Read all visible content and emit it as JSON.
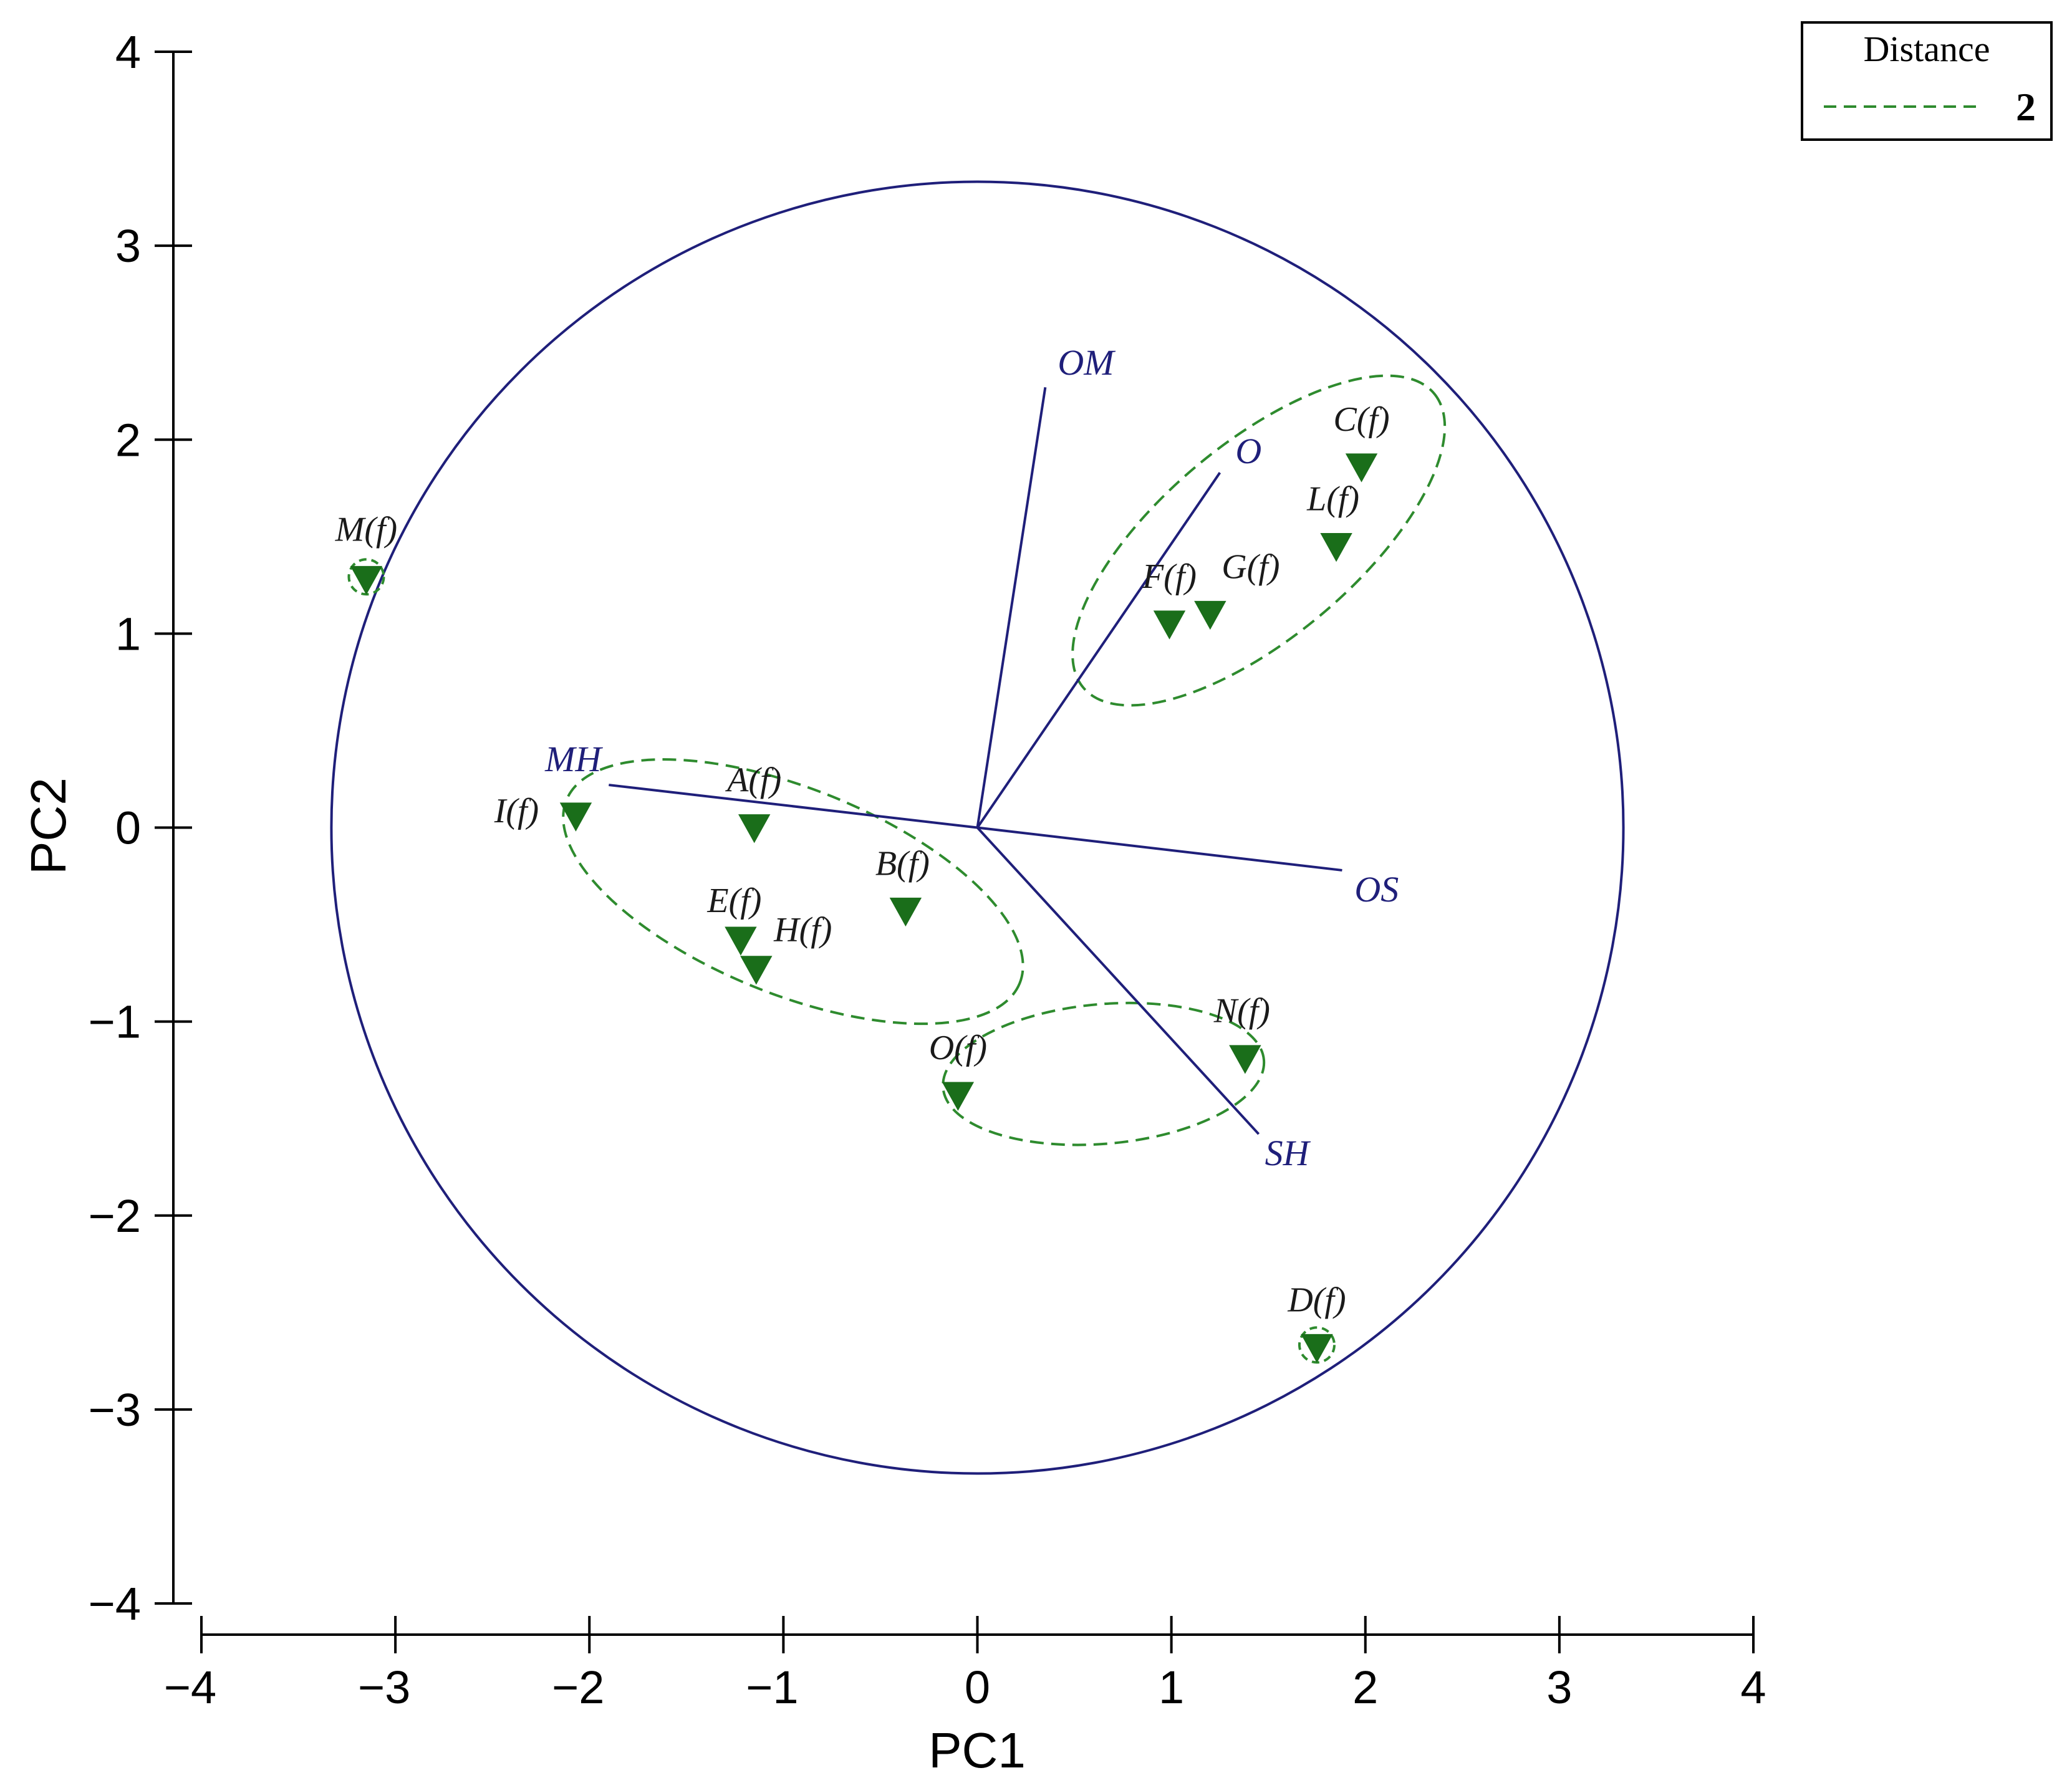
{
  "chart_data": {
    "type": "scatter",
    "title": "",
    "xlabel": "PC1",
    "ylabel": "PC2",
    "xlim": [
      -4,
      4
    ],
    "ylim": [
      -4,
      4
    ],
    "x_ticks": [
      -4,
      -3,
      -2,
      -1,
      0,
      1,
      2,
      3,
      4
    ],
    "y_ticks": [
      -4,
      -3,
      -2,
      -1,
      0,
      1,
      2,
      3,
      4
    ],
    "x_tick_labels": [
      "−4",
      "−3",
      "−2",
      "−1",
      "0",
      "1",
      "2",
      "3",
      "4"
    ],
    "y_tick_labels": [
      "−4",
      "−3",
      "−2",
      "−1",
      "0",
      "1",
      "2",
      "3",
      "4"
    ],
    "grid": false,
    "legend": {
      "title": "Distance",
      "entries": [
        {
          "label": "2",
          "style": "dashed",
          "color": "#2e8b2e"
        }
      ],
      "placement": "top-right"
    },
    "circle": {
      "center": [
        0,
        0
      ],
      "radius": 3.33
    },
    "points": [
      {
        "label": "M(f)",
        "x": -3.15,
        "y": 1.28,
        "ringed": true
      },
      {
        "label": "I(f)",
        "x": -2.07,
        "y": 0.06
      },
      {
        "label": "A(f)",
        "x": -1.15,
        "y": 0.0
      },
      {
        "label": "B(f)",
        "x": -0.37,
        "y": -0.43
      },
      {
        "label": "E(f)",
        "x": -1.22,
        "y": -0.58
      },
      {
        "label": "H(f)",
        "x": -1.14,
        "y": -0.73
      },
      {
        "label": "O(f)",
        "x": -0.1,
        "y": -1.38
      },
      {
        "label": "N(f)",
        "x": 1.38,
        "y": -1.19
      },
      {
        "label": "F(f)",
        "x": 0.99,
        "y": 1.05
      },
      {
        "label": "G(f)",
        "x": 1.2,
        "y": 1.1
      },
      {
        "label": "L(f)",
        "x": 1.85,
        "y": 1.45
      },
      {
        "label": "C(f)",
        "x": 1.98,
        "y": 1.86
      },
      {
        "label": "D(f)",
        "x": 1.75,
        "y": -2.68,
        "ringed": true
      }
    ],
    "vectors": [
      {
        "label": "OM",
        "x": 0.35,
        "y": 2.27,
        "color": "#1f1f7a"
      },
      {
        "label": "O",
        "x": 1.25,
        "y": 1.83,
        "color": "#1f1f7a"
      },
      {
        "label": "MH",
        "x": -1.9,
        "y": 0.22,
        "color": "#1f1f7a"
      },
      {
        "label": "OS",
        "x": 1.88,
        "y": -0.22,
        "color": "#1f1f7a"
      },
      {
        "label": "SH",
        "x": 1.45,
        "y": -1.58,
        "color": "#1f1f7a"
      }
    ],
    "clusters": [
      {
        "center": [
          1.45,
          1.48
        ],
        "rx": 1.18,
        "ry": 0.5,
        "angle": 40
      },
      {
        "center": [
          -0.95,
          -0.33
        ],
        "rx": 1.26,
        "ry": 0.53,
        "angle": -22
      },
      {
        "center": [
          0.65,
          -1.27
        ],
        "rx": 0.83,
        "ry": 0.36,
        "angle": 5
      }
    ],
    "colors": {
      "axis": "#000000",
      "circle": "#1f1f7a",
      "vector": "#1f1f7a",
      "marker": "#1a6e1a",
      "cluster": "#2e8b2e"
    }
  }
}
